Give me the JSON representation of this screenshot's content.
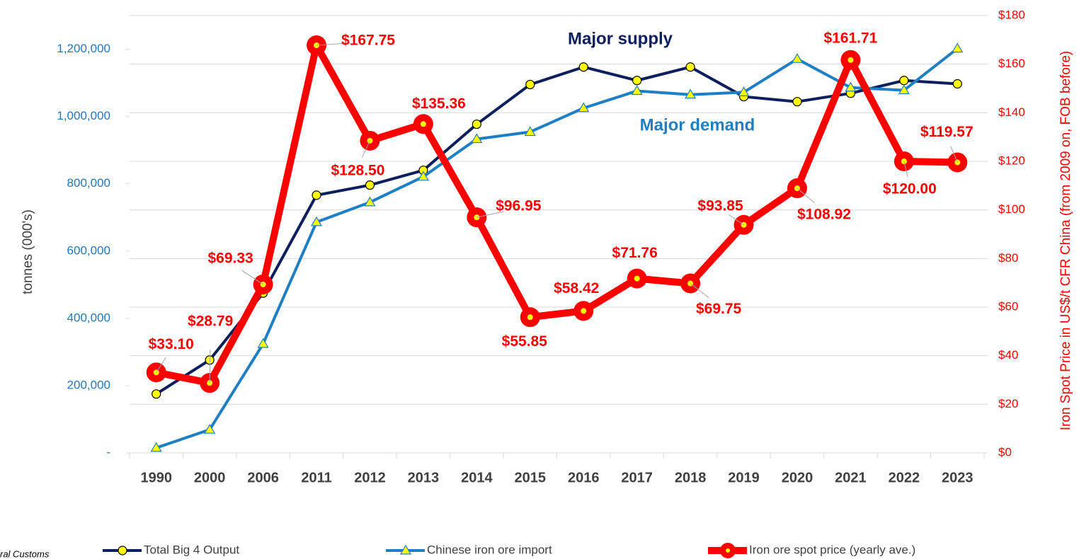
{
  "chart_data": {
    "type": "line",
    "categories": [
      "1990",
      "2000",
      "2006",
      "2011",
      "2012",
      "2013",
      "2014",
      "2015",
      "2016",
      "2017",
      "2018",
      "2019",
      "2020",
      "2021",
      "2022",
      "2023"
    ],
    "series": [
      {
        "name": "Total Big 4 Output",
        "color": "#0d1f5c",
        "values": [
          175000,
          276000,
          475000,
          766000,
          796000,
          840000,
          977000,
          1095000,
          1147000,
          1107000,
          1147000,
          1059000,
          1044000,
          1069000,
          1107000,
          1097000
        ]
      },
      {
        "name": "Chinese iron ore import",
        "color": "#1f7fc4",
        "values": [
          15000,
          69000,
          324000,
          686000,
          745000,
          821000,
          933000,
          954000,
          1025000,
          1076000,
          1065000,
          1072000,
          1171000,
          1086000,
          1078000,
          1202000
        ]
      },
      {
        "name": "Iron ore spot price (yearly ave.)",
        "color": "#ff0000",
        "axis": "y2",
        "values": [
          33.1,
          28.79,
          69.33,
          167.75,
          128.5,
          135.36,
          96.95,
          55.85,
          58.42,
          71.76,
          69.75,
          93.85,
          108.92,
          161.71,
          120.0,
          119.57
        ],
        "value_labels": [
          "$33.10",
          "$28.79",
          "$69.33",
          "$167.75",
          "$128.50",
          "$135.36",
          "$96.95",
          "$55.85",
          "$58.42",
          "$71.76",
          "$69.75",
          "$93.85",
          "$108.92",
          "$161.71",
          "$120.00",
          "$119.57"
        ]
      }
    ],
    "ylabel": "tonnes (000's)",
    "y2label": "Iron Spot Price in US$/t CFR China (from 2009 on, FOB before)",
    "ylim": [
      0,
      1300000
    ],
    "yticks": [
      {
        "value": 0,
        "label": "-"
      },
      {
        "value": 200000,
        "label": "200,000"
      },
      {
        "value": 400000,
        "label": "400,000"
      },
      {
        "value": 600000,
        "label": "600,000"
      },
      {
        "value": 800000,
        "label": "800,000"
      },
      {
        "value": 1000000,
        "label": "1,000,000"
      },
      {
        "value": 1200000,
        "label": "1,200,000"
      }
    ],
    "y2lim": [
      0,
      180
    ],
    "y2ticks": [
      {
        "value": 0,
        "label": "$0"
      },
      {
        "value": 20,
        "label": "$20"
      },
      {
        "value": 40,
        "label": "$40"
      },
      {
        "value": 60,
        "label": "$60"
      },
      {
        "value": 80,
        "label": "$80"
      },
      {
        "value": 100,
        "label": "$100"
      },
      {
        "value": 120,
        "label": "$120"
      },
      {
        "value": 140,
        "label": "$140"
      },
      {
        "value": 160,
        "label": "$160"
      },
      {
        "value": 180,
        "label": "$180"
      }
    ],
    "annotations": [
      "Major supply",
      "Major demand"
    ],
    "source": "ral Customs",
    "grid": true,
    "legend": "bottom"
  }
}
